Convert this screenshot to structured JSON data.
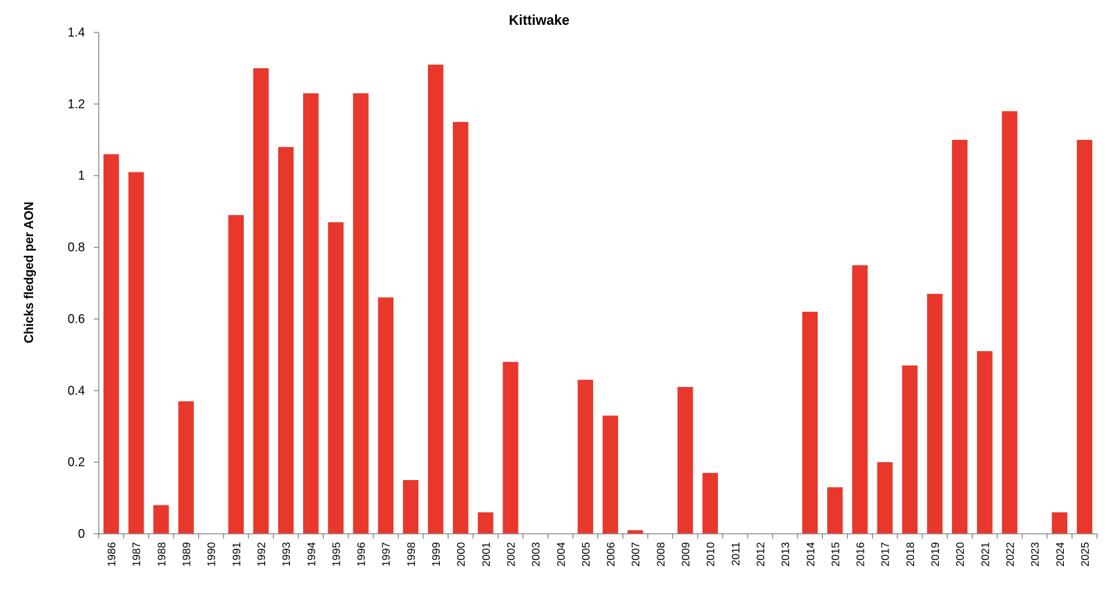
{
  "chart_data": {
    "type": "bar",
    "title": "Kittiwake",
    "xlabel": "",
    "ylabel": "Chicks fledged per AON",
    "ylim": [
      0,
      1.4
    ],
    "yticks": [
      "0",
      "0.2",
      "0.4",
      "0.6",
      "0.8",
      "1",
      "1.2",
      "1.4"
    ],
    "ytick_values": [
      0,
      0.2,
      0.4,
      0.6,
      0.8,
      1,
      1.2,
      1.4
    ],
    "grid": false,
    "bar_color": "#e8372b",
    "categories": [
      "1986",
      "1987",
      "1988",
      "1989",
      "1990",
      "1991",
      "1992",
      "1993",
      "1994",
      "1995",
      "1996",
      "1997",
      "1998",
      "1999",
      "2000",
      "2001",
      "2002",
      "2003",
      "2004",
      "2005",
      "2006",
      "2007",
      "2008",
      "2009",
      "2010",
      "2011",
      "2012",
      "2013",
      "2014",
      "2015",
      "2016",
      "2017",
      "2018",
      "2019",
      "2020",
      "2021",
      "2022",
      "2023",
      "2024",
      "2025"
    ],
    "values": [
      1.06,
      1.01,
      0.08,
      0.37,
      null,
      0.89,
      1.3,
      1.08,
      1.23,
      0.87,
      1.23,
      0.66,
      0.15,
      1.31,
      1.15,
      0.06,
      0.48,
      null,
      null,
      0.43,
      0.33,
      0.01,
      null,
      0.41,
      0.17,
      null,
      null,
      null,
      0.62,
      0.13,
      0.75,
      0.2,
      0.47,
      0.67,
      1.1,
      0.51,
      1.18,
      null,
      0.06,
      1.1
    ]
  }
}
